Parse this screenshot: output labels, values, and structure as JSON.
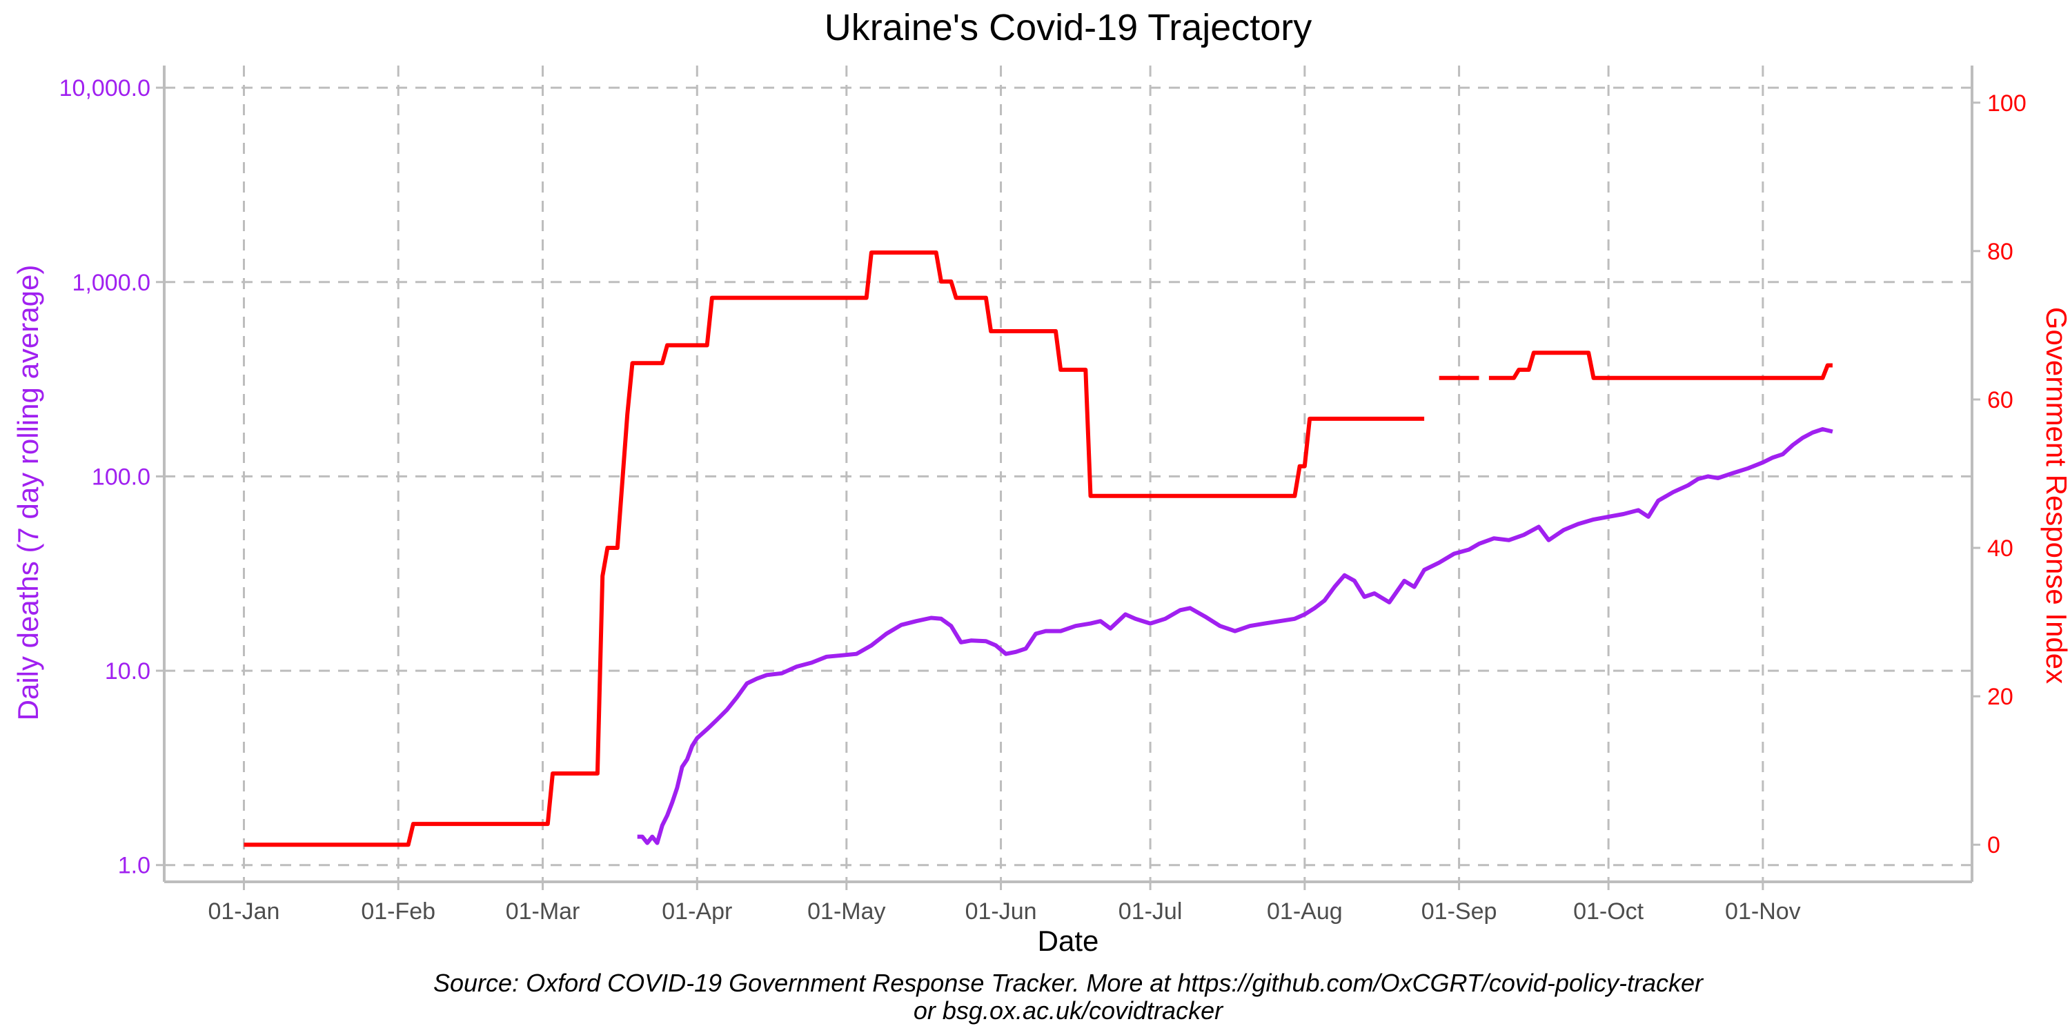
{
  "chart_data": {
    "type": "line",
    "title": "Ukraine's Covid-19 Trajectory",
    "xlabel": "Date",
    "ylabel_left": "Daily deaths (7 day rolling average)",
    "ylabel_right": "Government Response Index",
    "caption": [
      "Source: Oxford COVID-19 Government Response Tracker. More at https://github.com/OxCGRT/covid-policy-tracker",
      "or bsg.ox.ac.uk/covidtracker"
    ],
    "x_ticks": [
      {
        "date": "2020-01-01",
        "label": "01-Jan"
      },
      {
        "date": "2020-02-01",
        "label": "01-Feb"
      },
      {
        "date": "2020-03-01",
        "label": "01-Mar"
      },
      {
        "date": "2020-04-01",
        "label": "01-Apr"
      },
      {
        "date": "2020-05-01",
        "label": "01-May"
      },
      {
        "date": "2020-06-01",
        "label": "01-Jun"
      },
      {
        "date": "2020-07-01",
        "label": "01-Jul"
      },
      {
        "date": "2020-08-01",
        "label": "01-Aug"
      },
      {
        "date": "2020-09-01",
        "label": "01-Sep"
      },
      {
        "date": "2020-10-01",
        "label": "01-Oct"
      },
      {
        "date": "2020-11-01",
        "label": "01-Nov"
      }
    ],
    "xlim": [
      "2019-12-16",
      "2020-12-13"
    ],
    "y_left": {
      "scale": "log",
      "lim": [
        0.82,
        13000
      ],
      "ticks": [
        {
          "value": 1,
          "label": "1.0"
        },
        {
          "value": 10,
          "label": "10.0"
        },
        {
          "value": 100,
          "label": "100.0"
        },
        {
          "value": 1000,
          "label": "1,000.0"
        },
        {
          "value": 10000,
          "label": "10,000.0"
        }
      ]
    },
    "y_right": {
      "scale": "linear",
      "lim": [
        -5,
        105
      ],
      "ticks": [
        {
          "value": 0,
          "label": "0"
        },
        {
          "value": 20,
          "label": "20"
        },
        {
          "value": 40,
          "label": "40"
        },
        {
          "value": 60,
          "label": "60"
        },
        {
          "value": 80,
          "label": "80"
        },
        {
          "value": 100,
          "label": "100"
        }
      ]
    },
    "grid": true,
    "series": [
      {
        "name": "Daily deaths (7 day rolling average)",
        "axis": "left",
        "color": "#a020f0",
        "points": [
          [
            "2020-03-20",
            1.4
          ],
          [
            "2020-03-21",
            1.4
          ],
          [
            "2020-03-22",
            1.3
          ],
          [
            "2020-03-23",
            1.4
          ],
          [
            "2020-03-24",
            1.3
          ],
          [
            "2020-03-25",
            1.6
          ],
          [
            "2020-03-26",
            1.8
          ],
          [
            "2020-03-27",
            2.1
          ],
          [
            "2020-03-28",
            2.5
          ],
          [
            "2020-03-29",
            3.2
          ],
          [
            "2020-03-30",
            3.5
          ],
          [
            "2020-03-31",
            4.1
          ],
          [
            "2020-04-01",
            4.5
          ],
          [
            "2020-04-03",
            5.0
          ],
          [
            "2020-04-05",
            5.6
          ],
          [
            "2020-04-07",
            6.3
          ],
          [
            "2020-04-09",
            7.3
          ],
          [
            "2020-04-11",
            8.6
          ],
          [
            "2020-04-13",
            9.1
          ],
          [
            "2020-04-15",
            9.5
          ],
          [
            "2020-04-18",
            9.7
          ],
          [
            "2020-04-21",
            10.5
          ],
          [
            "2020-04-24",
            11.0
          ],
          [
            "2020-04-27",
            11.8
          ],
          [
            "2020-04-30",
            12.0
          ],
          [
            "2020-05-03",
            12.2
          ],
          [
            "2020-05-06",
            13.5
          ],
          [
            "2020-05-09",
            15.5
          ],
          [
            "2020-05-12",
            17.2
          ],
          [
            "2020-05-15",
            18.0
          ],
          [
            "2020-05-18",
            18.7
          ],
          [
            "2020-05-20",
            18.5
          ],
          [
            "2020-05-22",
            17.0
          ],
          [
            "2020-05-24",
            14.0
          ],
          [
            "2020-05-26",
            14.3
          ],
          [
            "2020-05-29",
            14.2
          ],
          [
            "2020-05-31",
            13.5
          ],
          [
            "2020-06-02",
            12.2
          ],
          [
            "2020-06-04",
            12.5
          ],
          [
            "2020-06-06",
            13.0
          ],
          [
            "2020-06-08",
            15.5
          ],
          [
            "2020-06-10",
            16.0
          ],
          [
            "2020-06-13",
            16.0
          ],
          [
            "2020-06-16",
            17.0
          ],
          [
            "2020-06-19",
            17.5
          ],
          [
            "2020-06-21",
            18.0
          ],
          [
            "2020-06-23",
            16.5
          ],
          [
            "2020-06-26",
            19.5
          ],
          [
            "2020-06-28",
            18.5
          ],
          [
            "2020-07-01",
            17.5
          ],
          [
            "2020-07-04",
            18.5
          ],
          [
            "2020-07-07",
            20.5
          ],
          [
            "2020-07-09",
            21.0
          ],
          [
            "2020-07-12",
            19.0
          ],
          [
            "2020-07-15",
            17.0
          ],
          [
            "2020-07-18",
            16.0
          ],
          [
            "2020-07-21",
            17.0
          ],
          [
            "2020-07-24",
            17.5
          ],
          [
            "2020-07-27",
            18.0
          ],
          [
            "2020-07-30",
            18.5
          ],
          [
            "2020-08-01",
            19.5
          ],
          [
            "2020-08-03",
            21.0
          ],
          [
            "2020-08-05",
            23.0
          ],
          [
            "2020-08-07",
            27.0
          ],
          [
            "2020-08-09",
            31.0
          ],
          [
            "2020-08-11",
            29.0
          ],
          [
            "2020-08-13",
            24.0
          ],
          [
            "2020-08-15",
            25.0
          ],
          [
            "2020-08-18",
            22.5
          ],
          [
            "2020-08-21",
            29.0
          ],
          [
            "2020-08-23",
            27.0
          ],
          [
            "2020-08-25",
            33.0
          ],
          [
            "2020-08-28",
            36.0
          ],
          [
            "2020-08-31",
            40.0
          ],
          [
            "2020-09-03",
            42.0
          ],
          [
            "2020-09-05",
            45.0
          ],
          [
            "2020-09-08",
            48.0
          ],
          [
            "2020-09-11",
            47.0
          ],
          [
            "2020-09-14",
            50.0
          ],
          [
            "2020-09-17",
            55.0
          ],
          [
            "2020-09-19",
            47.0
          ],
          [
            "2020-09-22",
            53.0
          ],
          [
            "2020-09-25",
            57.0
          ],
          [
            "2020-09-28",
            60.0
          ],
          [
            "2020-10-01",
            62.0
          ],
          [
            "2020-10-04",
            64.0
          ],
          [
            "2020-10-07",
            67.0
          ],
          [
            "2020-10-09",
            62.0
          ],
          [
            "2020-10-11",
            75.0
          ],
          [
            "2020-10-14",
            83.0
          ],
          [
            "2020-10-17",
            90.0
          ],
          [
            "2020-10-19",
            97.0
          ],
          [
            "2020-10-21",
            100.0
          ],
          [
            "2020-10-23",
            98.0
          ],
          [
            "2020-10-26",
            104.0
          ],
          [
            "2020-10-29",
            110.0
          ],
          [
            "2020-11-01",
            118.0
          ],
          [
            "2020-11-03",
            125.0
          ],
          [
            "2020-11-05",
            130.0
          ],
          [
            "2020-11-07",
            145.0
          ],
          [
            "2020-11-09",
            158.0
          ],
          [
            "2020-11-11",
            168.0
          ],
          [
            "2020-11-13",
            175.0
          ],
          [
            "2020-11-15",
            170.0
          ]
        ]
      },
      {
        "name": "Government Response Index",
        "axis": "right",
        "color": "#ff0000",
        "segments": [
          [
            [
              "2020-01-01",
              0
            ],
            [
              "2020-02-03",
              0
            ],
            [
              "2020-02-04",
              2.8
            ],
            [
              "2020-03-02",
              2.8
            ],
            [
              "2020-03-03",
              9.6
            ],
            [
              "2020-03-12",
              9.6
            ],
            [
              "2020-03-13",
              36.2
            ],
            [
              "2020-03-14",
              40.0
            ],
            [
              "2020-03-16",
              40.0
            ],
            [
              "2020-03-18",
              58.0
            ],
            [
              "2020-03-19",
              64.9
            ],
            [
              "2020-03-25",
              64.9
            ],
            [
              "2020-03-26",
              67.3
            ],
            [
              "2020-04-03",
              67.3
            ],
            [
              "2020-04-04",
              73.7
            ],
            [
              "2020-05-05",
              73.7
            ],
            [
              "2020-05-06",
              79.8
            ],
            [
              "2020-05-19",
              79.8
            ],
            [
              "2020-05-20",
              75.9
            ],
            [
              "2020-05-22",
              75.9
            ],
            [
              "2020-05-23",
              73.7
            ],
            [
              "2020-05-29",
              73.7
            ],
            [
              "2020-05-30",
              69.2
            ],
            [
              "2020-06-12",
              69.2
            ],
            [
              "2020-06-13",
              64.0
            ],
            [
              "2020-06-18",
              64.0
            ],
            [
              "2020-06-19",
              47.0
            ],
            [
              "2020-07-30",
              47.0
            ],
            [
              "2020-07-31",
              51.0
            ],
            [
              "2020-08-01",
              51.0
            ],
            [
              "2020-08-02",
              57.4
            ],
            [
              "2020-08-25",
              57.4
            ]
          ],
          [
            [
              "2020-08-28",
              62.9
            ],
            [
              "2020-09-05",
              62.9
            ]
          ],
          [
            [
              "2020-09-07",
              62.9
            ],
            [
              "2020-09-12",
              62.9
            ],
            [
              "2020-09-13",
              64.0
            ],
            [
              "2020-09-15",
              64.0
            ],
            [
              "2020-09-16",
              66.3
            ],
            [
              "2020-09-27",
              66.3
            ],
            [
              "2020-09-28",
              62.9
            ],
            [
              "2020-11-13",
              62.9
            ],
            [
              "2020-11-14",
              64.6
            ],
            [
              "2020-11-15",
              64.6
            ]
          ]
        ]
      }
    ]
  }
}
